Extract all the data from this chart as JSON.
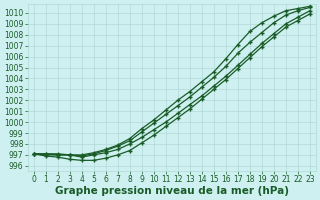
{
  "title": "Graphe pression niveau de la mer (hPa)",
  "hours": [
    0,
    1,
    2,
    3,
    4,
    5,
    6,
    7,
    8,
    9,
    10,
    11,
    12,
    13,
    14,
    15,
    16,
    17,
    18,
    19,
    20,
    21,
    22,
    23
  ],
  "ylim": [
    995.5,
    1010.8
  ],
  "yticks": [
    996,
    997,
    998,
    999,
    1000,
    1001,
    1002,
    1003,
    1004,
    1005,
    1006,
    1007,
    1008,
    1009,
    1010
  ],
  "bg_color": "#cef0f0",
  "grid_color": "#b0d8d8",
  "line_color": "#1a5c28",
  "lines": [
    [
      997.1,
      997.0,
      997.0,
      997.0,
      996.8,
      997.0,
      997.2,
      997.5,
      998.0,
      998.6,
      999.3,
      1000.0,
      1000.8,
      1001.6,
      1002.4,
      1003.3,
      1004.2,
      1005.2,
      1006.2,
      1007.2,
      1008.1,
      1009.0,
      1009.6,
      1010.2
    ],
    [
      997.1,
      996.9,
      996.8,
      996.6,
      996.5,
      996.5,
      996.7,
      997.0,
      997.4,
      998.1,
      998.8,
      999.6,
      1000.4,
      1001.2,
      1002.1,
      1003.0,
      1003.9,
      1004.9,
      1005.9,
      1006.9,
      1007.8,
      1008.7,
      1009.3,
      1009.9
    ],
    [
      997.1,
      997.1,
      997.0,
      997.0,
      996.9,
      997.1,
      997.4,
      997.8,
      998.3,
      999.1,
      999.9,
      1000.7,
      1001.5,
      1002.3,
      1003.2,
      1004.1,
      1005.1,
      1006.3,
      1007.3,
      1008.2,
      1009.1,
      1009.8,
      1010.2,
      1010.5
    ],
    [
      997.1,
      997.1,
      997.1,
      997.0,
      997.0,
      997.2,
      997.5,
      997.9,
      998.5,
      999.4,
      1000.2,
      1001.1,
      1002.0,
      1002.8,
      1003.7,
      1004.6,
      1005.8,
      1007.1,
      1008.3,
      1009.1,
      1009.7,
      1010.2,
      1010.4,
      1010.6
    ]
  ],
  "marker": "+",
  "linewidth": 0.9,
  "markersize": 3.5,
  "markeredgewidth": 1.0,
  "tick_fontsize": 5.5,
  "title_fontsize": 7.5
}
